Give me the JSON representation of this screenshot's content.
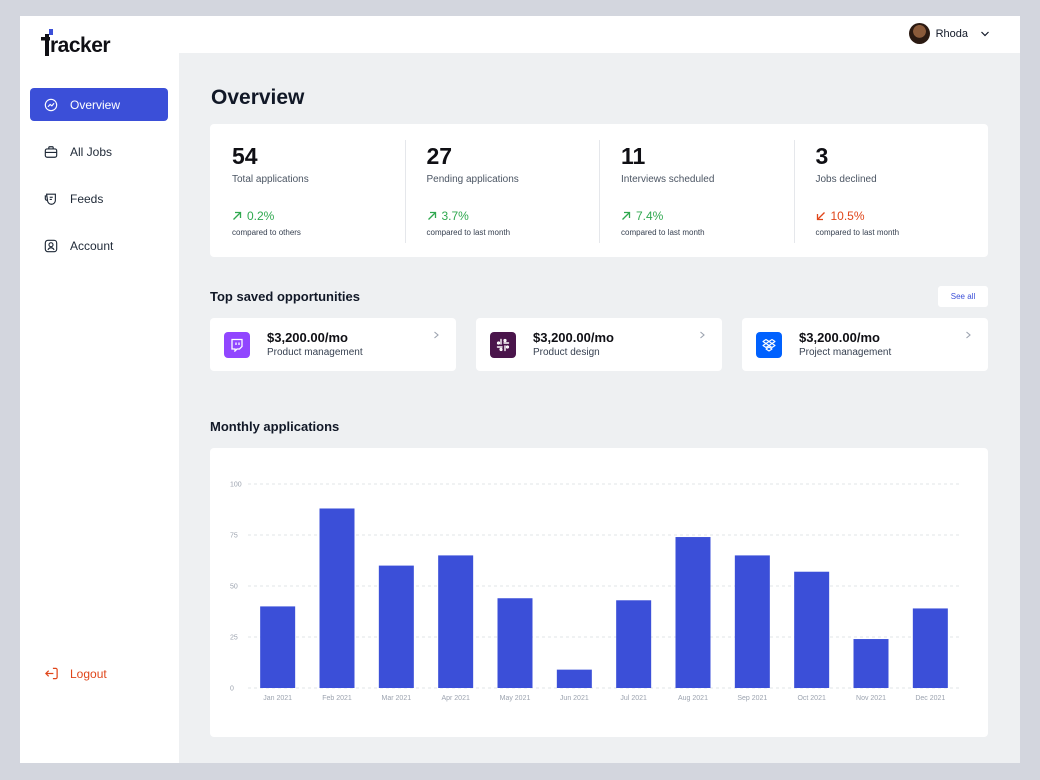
{
  "app": {
    "logo_text": "racker"
  },
  "sidebar": {
    "items": [
      {
        "label": "Overview",
        "icon": "chart-line-icon",
        "active": true
      },
      {
        "label": "All Jobs",
        "icon": "briefcase-icon",
        "active": false
      },
      {
        "label": "Feeds",
        "icon": "feeds-icon",
        "active": false
      },
      {
        "label": "Account",
        "icon": "user-icon",
        "active": false
      }
    ],
    "logout_label": "Logout"
  },
  "header": {
    "user_name": "Rhoda"
  },
  "main": {
    "title": "Overview",
    "stats": [
      {
        "value": "54",
        "label": "Total applications",
        "change": "0.2%",
        "direction": "up",
        "sub": "compared to others"
      },
      {
        "value": "27",
        "label": "Pending applications",
        "change": "3.7%",
        "direction": "up",
        "sub": "compared to last month"
      },
      {
        "value": "11",
        "label": "Interviews scheduled",
        "change": "7.4%",
        "direction": "up",
        "sub": "compared to last month"
      },
      {
        "value": "3",
        "label": "Jobs declined",
        "change": "10.5%",
        "direction": "down",
        "sub": "compared to last month"
      }
    ],
    "opportunities_title": "Top saved opportunities",
    "see_all_label": "See all",
    "opportunities": [
      {
        "salary": "$3,200.00/mo",
        "role": "Product management",
        "icon": "twitch-icon",
        "color": "#9146ff"
      },
      {
        "salary": "$3,200.00/mo",
        "role": "Product design",
        "icon": "slack-icon",
        "color": "#4a154b"
      },
      {
        "salary": "$3,200.00/mo",
        "role": "Project management",
        "icon": "dropbox-icon",
        "color": "#0061fe"
      }
    ],
    "chart_title": "Monthly applications"
  },
  "colors": {
    "accent": "#3b4fd8",
    "up": "#2fa84f",
    "down": "#e0461a",
    "bar": "#3b4fd8"
  },
  "chart_data": {
    "type": "bar",
    "categories": [
      "Jan 2021",
      "Feb 2021",
      "Mar 2021",
      "Apr 2021",
      "May 2021",
      "Jun 2021",
      "Jul 2021",
      "Aug 2021",
      "Sep 2021",
      "Oct 2021",
      "Nov 2021",
      "Dec 2021"
    ],
    "values": [
      40,
      88,
      60,
      65,
      44,
      9,
      43,
      74,
      65,
      57,
      24,
      39
    ],
    "yticks": [
      0,
      25,
      50,
      75,
      100
    ],
    "ylim": [
      0,
      100
    ],
    "grid": true,
    "title": "Monthly applications"
  }
}
